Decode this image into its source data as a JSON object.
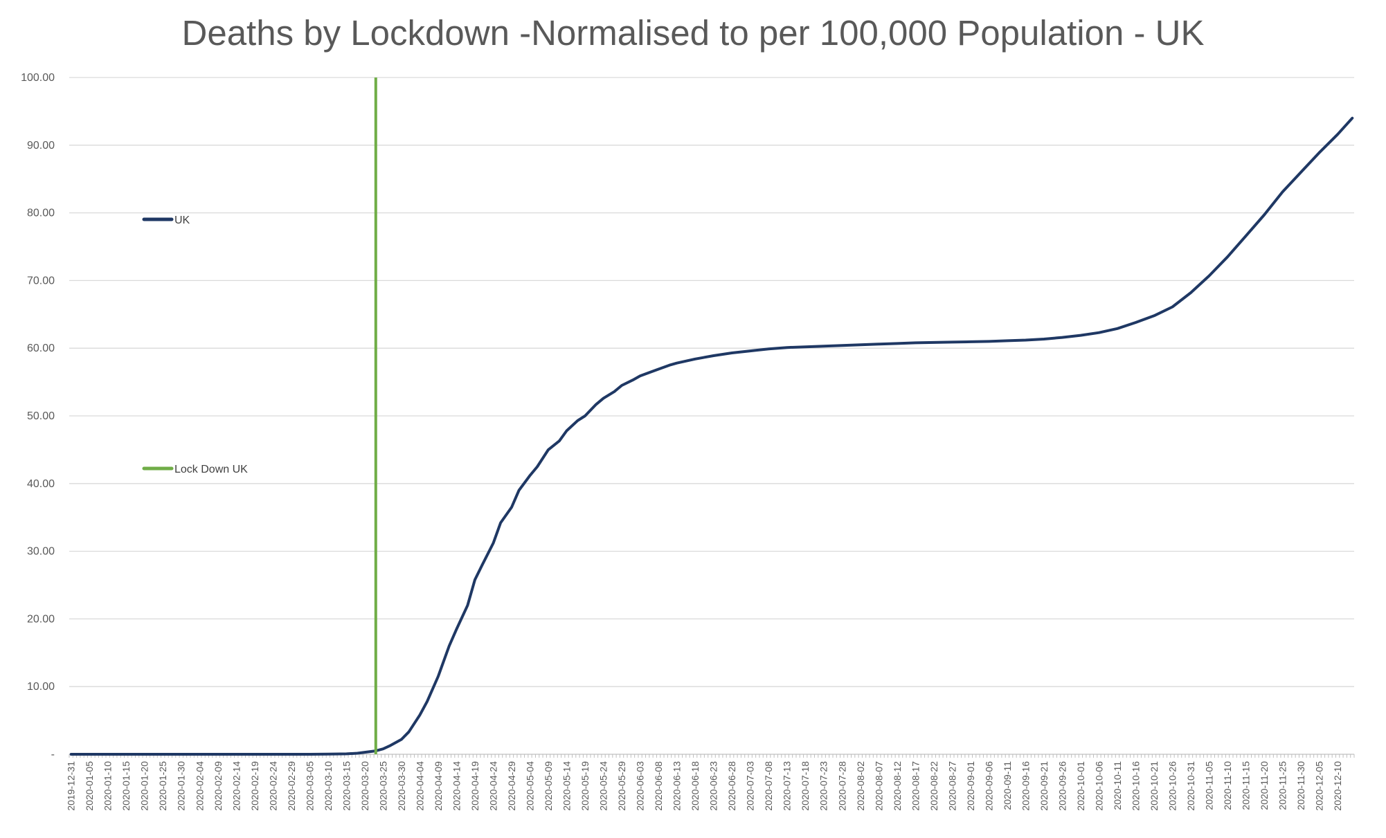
{
  "chart_data": {
    "type": "line",
    "title": "Deaths by Lockdown -Normalised to per 100,000 Population - UK",
    "xlabel": "",
    "ylabel": "",
    "ylim": [
      0,
      100
    ],
    "yticks": [
      "-",
      "10.00",
      "20.00",
      "30.00",
      "40.00",
      "50.00",
      "60.00",
      "70.00",
      "80.00",
      "90.00",
      "100.00"
    ],
    "x_start": "2019-12-31",
    "x_end": "2020-12-14",
    "x_tick_labels": [
      "2019-12-31",
      "2020-01-05",
      "2020-01-10",
      "2020-01-15",
      "2020-01-20",
      "2020-01-25",
      "2020-01-30",
      "2020-02-04",
      "2020-02-09",
      "2020-02-14",
      "2020-02-19",
      "2020-02-24",
      "2020-02-29",
      "2020-03-05",
      "2020-03-10",
      "2020-03-15",
      "2020-03-20",
      "2020-03-25",
      "2020-03-30",
      "2020-04-04",
      "2020-04-09",
      "2020-04-14",
      "2020-04-19",
      "2020-04-24",
      "2020-04-29",
      "2020-05-04",
      "2020-05-09",
      "2020-05-14",
      "2020-05-19",
      "2020-05-24",
      "2020-05-29",
      "2020-06-03",
      "2020-06-08",
      "2020-06-13",
      "2020-06-18",
      "2020-06-23",
      "2020-06-28",
      "2020-07-03",
      "2020-07-08",
      "2020-07-13",
      "2020-07-18",
      "2020-07-23",
      "2020-07-28",
      "2020-08-02",
      "2020-08-07",
      "2020-08-12",
      "2020-08-17",
      "2020-08-22",
      "2020-08-27",
      "2020-09-01",
      "2020-09-06",
      "2020-09-11",
      "2020-09-16",
      "2020-09-21",
      "2020-09-26",
      "2020-10-01",
      "2020-10-06",
      "2020-10-11",
      "2020-10-16",
      "2020-10-21",
      "2020-10-26",
      "2020-10-31",
      "2020-11-05",
      "2020-11-10",
      "2020-11-15",
      "2020-11-20",
      "2020-11-25",
      "2020-11-30",
      "2020-12-05",
      "2020-12-10"
    ],
    "grid": true,
    "legend": "left",
    "series": [
      {
        "name": "UK",
        "color": "#1F3864",
        "points": [
          [
            "2019-12-31",
            0
          ],
          [
            "2020-03-05",
            0
          ],
          [
            "2020-03-10",
            0.02
          ],
          [
            "2020-03-15",
            0.06
          ],
          [
            "2020-03-18",
            0.15
          ],
          [
            "2020-03-20",
            0.3
          ],
          [
            "2020-03-23",
            0.5
          ],
          [
            "2020-03-25",
            0.8
          ],
          [
            "2020-03-27",
            1.3
          ],
          [
            "2020-03-30",
            2.2
          ],
          [
            "2020-04-01",
            3.3
          ],
          [
            "2020-04-04",
            5.8
          ],
          [
            "2020-04-06",
            7.8
          ],
          [
            "2020-04-09",
            11.5
          ],
          [
            "2020-04-12",
            16.0
          ],
          [
            "2020-04-14",
            18.5
          ],
          [
            "2020-04-17",
            22.0
          ],
          [
            "2020-04-19",
            25.8
          ],
          [
            "2020-04-21",
            28.0
          ],
          [
            "2020-04-24",
            31.2
          ],
          [
            "2020-04-26",
            34.2
          ],
          [
            "2020-04-29",
            36.5
          ],
          [
            "2020-05-01",
            39.0
          ],
          [
            "2020-05-04",
            41.2
          ],
          [
            "2020-05-06",
            42.5
          ],
          [
            "2020-05-09",
            45.0
          ],
          [
            "2020-05-12",
            46.3
          ],
          [
            "2020-05-14",
            47.8
          ],
          [
            "2020-05-17",
            49.3
          ],
          [
            "2020-05-19",
            50.0
          ],
          [
            "2020-05-22",
            51.7
          ],
          [
            "2020-05-24",
            52.6
          ],
          [
            "2020-05-27",
            53.6
          ],
          [
            "2020-05-29",
            54.5
          ],
          [
            "2020-06-01",
            55.3
          ],
          [
            "2020-06-03",
            55.9
          ],
          [
            "2020-06-06",
            56.5
          ],
          [
            "2020-06-08",
            56.9
          ],
          [
            "2020-06-11",
            57.5
          ],
          [
            "2020-06-13",
            57.8
          ],
          [
            "2020-06-18",
            58.4
          ],
          [
            "2020-06-23",
            58.9
          ],
          [
            "2020-06-28",
            59.3
          ],
          [
            "2020-07-03",
            59.6
          ],
          [
            "2020-07-08",
            59.9
          ],
          [
            "2020-07-13",
            60.1
          ],
          [
            "2020-07-18",
            60.2
          ],
          [
            "2020-07-23",
            60.3
          ],
          [
            "2020-07-28",
            60.4
          ],
          [
            "2020-08-02",
            60.5
          ],
          [
            "2020-08-07",
            60.6
          ],
          [
            "2020-08-12",
            60.7
          ],
          [
            "2020-08-17",
            60.8
          ],
          [
            "2020-08-22",
            60.85
          ],
          [
            "2020-08-27",
            60.9
          ],
          [
            "2020-09-01",
            60.95
          ],
          [
            "2020-09-06",
            61.0
          ],
          [
            "2020-09-11",
            61.1
          ],
          [
            "2020-09-16",
            61.2
          ],
          [
            "2020-09-21",
            61.35
          ],
          [
            "2020-09-26",
            61.6
          ],
          [
            "2020-10-01",
            61.9
          ],
          [
            "2020-10-06",
            62.3
          ],
          [
            "2020-10-11",
            62.9
          ],
          [
            "2020-10-16",
            63.8
          ],
          [
            "2020-10-21",
            64.8
          ],
          [
            "2020-10-26",
            66.1
          ],
          [
            "2020-10-31",
            68.2
          ],
          [
            "2020-11-05",
            70.7
          ],
          [
            "2020-11-10",
            73.5
          ],
          [
            "2020-11-15",
            76.6
          ],
          [
            "2020-11-20",
            79.7
          ],
          [
            "2020-11-25",
            83.1
          ],
          [
            "2020-11-30",
            86.0
          ],
          [
            "2020-12-05",
            88.9
          ],
          [
            "2020-12-10",
            91.6
          ],
          [
            "2020-12-14",
            94.0
          ]
        ]
      },
      {
        "name": "Lock Down UK",
        "color": "#70AD47",
        "vertical_at": "2020-03-23"
      }
    ]
  }
}
